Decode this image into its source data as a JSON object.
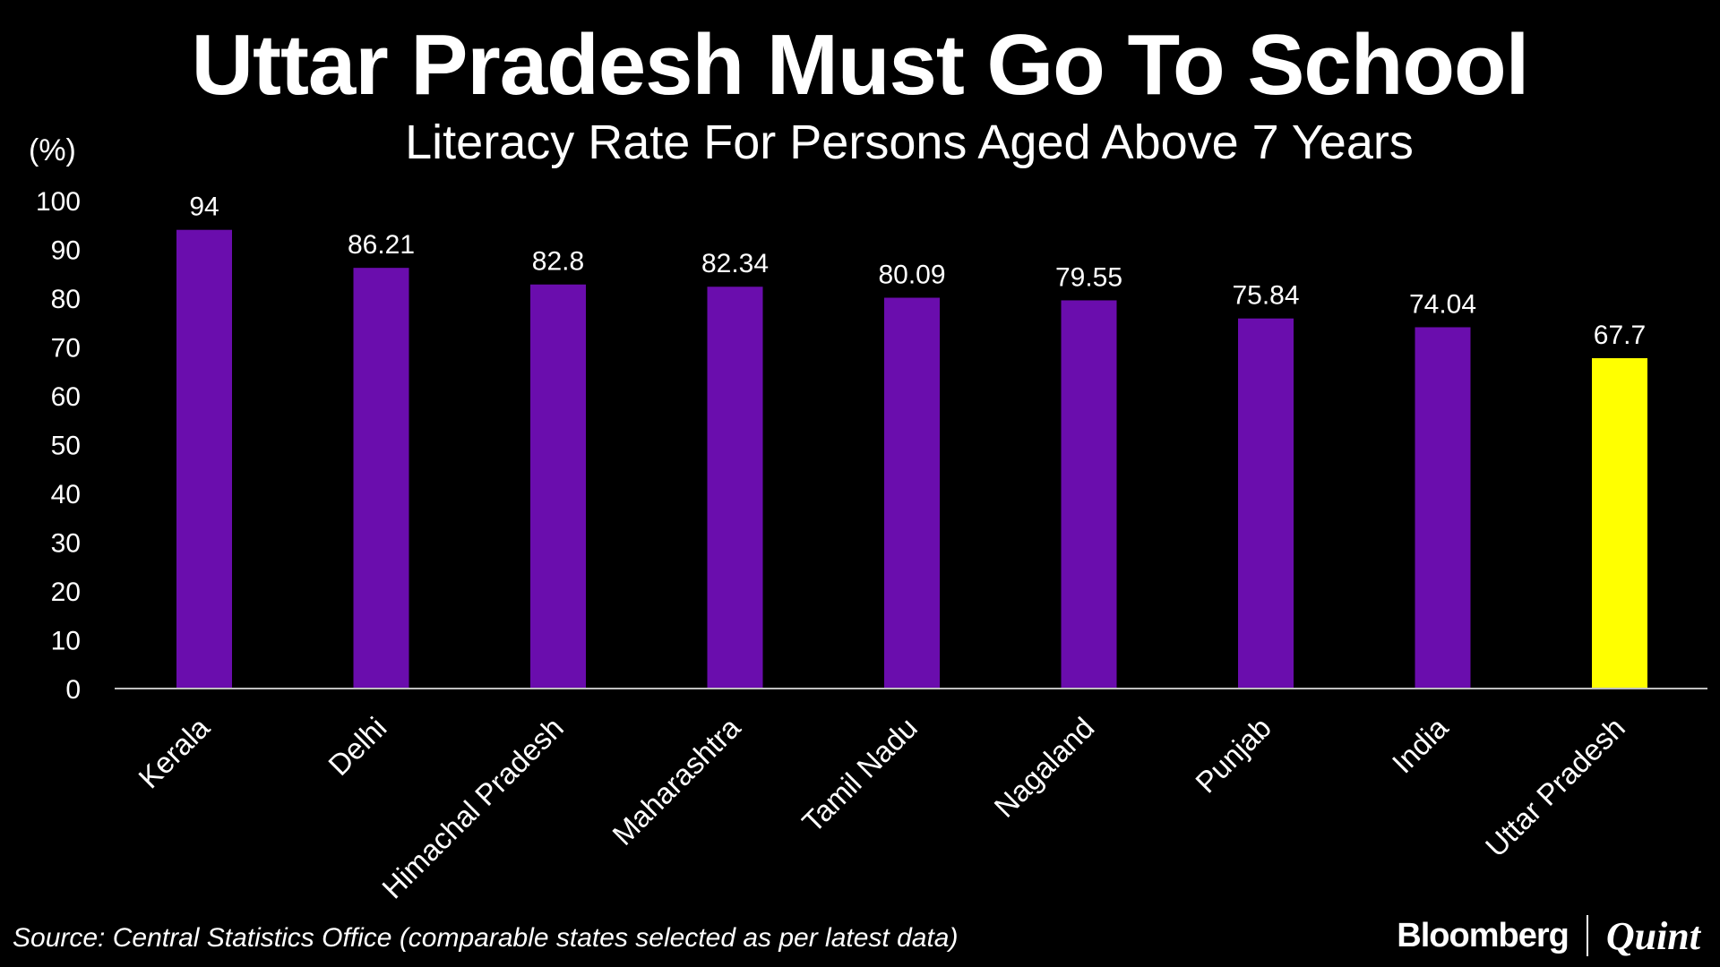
{
  "colors": {
    "background": "#000000",
    "bar": "#6a0dad",
    "highlight_bar": "#ffff00",
    "text": "#ffffff"
  },
  "footer": {
    "source": "Source: Central Statistics Office (comparable states selected as per latest data)",
    "brand_left": "Bloomberg",
    "brand_right": "Quint"
  },
  "chart_data": {
    "type": "bar",
    "title": "Uttar Pradesh Must Go To School",
    "subtitle": "Literacy Rate For Persons Aged Above 7 Years",
    "ylabel": "(%)",
    "xlabel": "",
    "ylim": [
      0,
      100
    ],
    "yticks": [
      0,
      10,
      20,
      30,
      40,
      50,
      60,
      70,
      80,
      90,
      100
    ],
    "grid": false,
    "categories": [
      "Kerala",
      "Delhi",
      "Himachal Pradesh",
      "Maharashtra",
      "Tamil Nadu",
      "Nagaland",
      "Punjab",
      "India",
      "Uttar Pradesh"
    ],
    "values": [
      94,
      86.21,
      82.8,
      82.34,
      80.09,
      79.55,
      75.84,
      74.04,
      67.7
    ],
    "value_labels": [
      "94",
      "86.21",
      "82.8",
      "82.34",
      "80.09",
      "79.55",
      "75.84",
      "74.04",
      "67.7"
    ],
    "highlight": "Uttar Pradesh"
  }
}
